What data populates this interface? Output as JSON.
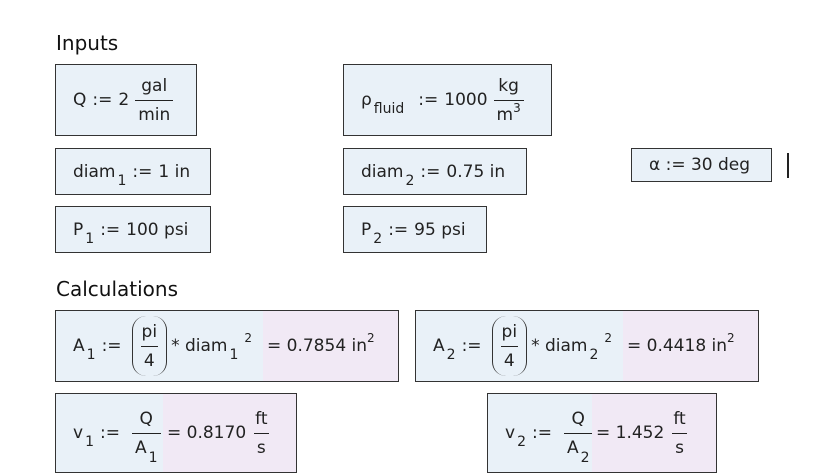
{
  "headings": {
    "inputs": "Inputs",
    "calculations": "Calculations"
  },
  "inputs": {
    "Q": {
      "name": "Q",
      "assign": ":=",
      "value": "2",
      "unit_num": "gal",
      "unit_den": "min"
    },
    "rho": {
      "name": "ρ",
      "sub": "fluid",
      "assign": ":=",
      "value": "1000",
      "unit_num": "kg",
      "unit_den": "m",
      "unit_den_exp": "3"
    },
    "diam1": {
      "name": "diam",
      "sub": "1",
      "assign": ":=",
      "value": "1 in"
    },
    "diam2": {
      "name": "diam",
      "sub": "2",
      "assign": ":=",
      "value": "0.75 in"
    },
    "alpha": {
      "text": "α := 30 deg"
    },
    "P1": {
      "name": "P",
      "sub": "1",
      "assign": ":=",
      "value": "100 psi"
    },
    "P2": {
      "name": "P",
      "sub": "2",
      "assign": ":=",
      "value": "95 psi"
    }
  },
  "calculations": {
    "A1": {
      "name": "A",
      "sub": "1",
      "assign": ":=",
      "num": "pi",
      "den": "4",
      "mult": "* diam",
      "msub": "1",
      "exp": "2",
      "result": "= 0.7854 in",
      "result_exp": "2"
    },
    "A2": {
      "name": "A",
      "sub": "2",
      "assign": ":=",
      "num": "pi",
      "den": "4",
      "mult": "* diam",
      "msub": "2",
      "exp": "2",
      "result": "= 0.4418 in",
      "result_exp": "2"
    },
    "v1": {
      "name": "v",
      "sub": "1",
      "assign": ":=",
      "num": "Q",
      "den": "A",
      "den_sub": "1",
      "result": "= 0.8170",
      "unit_num": "ft",
      "unit_den": "s"
    },
    "v2": {
      "name": "v",
      "sub": "2",
      "assign": ":=",
      "num": "Q",
      "den": "A",
      "den_sub": "2",
      "result": "= 1.452",
      "unit_num": "ft",
      "unit_den": "s"
    }
  }
}
